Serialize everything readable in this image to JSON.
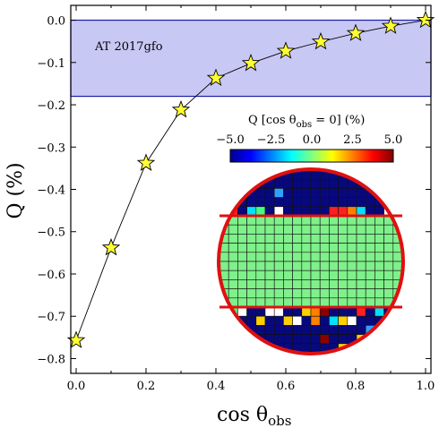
{
  "chart_data": {
    "type": "line",
    "xlabel": "cos θobs",
    "ylabel": "Q (%)",
    "xlim": [
      0.0,
      1.0
    ],
    "ylim": [
      -0.835,
      0.035
    ],
    "x_ticks": [
      "0.0",
      "0.2",
      "0.4",
      "0.6",
      "0.8",
      "1.0"
    ],
    "y_ticks": [
      "0.0",
      "−0.1",
      "−0.2",
      "−0.3",
      "−0.4",
      "−0.5",
      "−0.6",
      "−0.7",
      "−0.8"
    ],
    "series": [
      {
        "marker": "star",
        "color": "#ffff33",
        "x": [
          0.0,
          0.1,
          0.2,
          0.3,
          0.4,
          0.5,
          0.6,
          0.7,
          0.8,
          0.9,
          1.0
        ],
        "y": [
          -0.757,
          -0.538,
          -0.338,
          -0.212,
          -0.137,
          -0.102,
          -0.073,
          -0.051,
          -0.031,
          -0.014,
          0.0
        ]
      }
    ],
    "band": {
      "label": "AT 2017gfo",
      "y_from": -0.18,
      "y_to": 0.0,
      "color": "#c8c8f5"
    },
    "colorbar": {
      "title": "Q [cos θobs = 0] (%)",
      "ticks": [
        "−5.0",
        "−2.5",
        "0.0",
        "2.5",
        "5.0"
      ],
      "range": [
        -5.0,
        5.0
      ]
    }
  },
  "labels": {
    "ylabel_main": "Q (%)",
    "xlabel_main": "cos θ",
    "xlabel_sub": "obs",
    "cb_title_a": "Q [cos θ",
    "cb_title_sub": "obs",
    "cb_title_b": " = 0] (%)"
  }
}
